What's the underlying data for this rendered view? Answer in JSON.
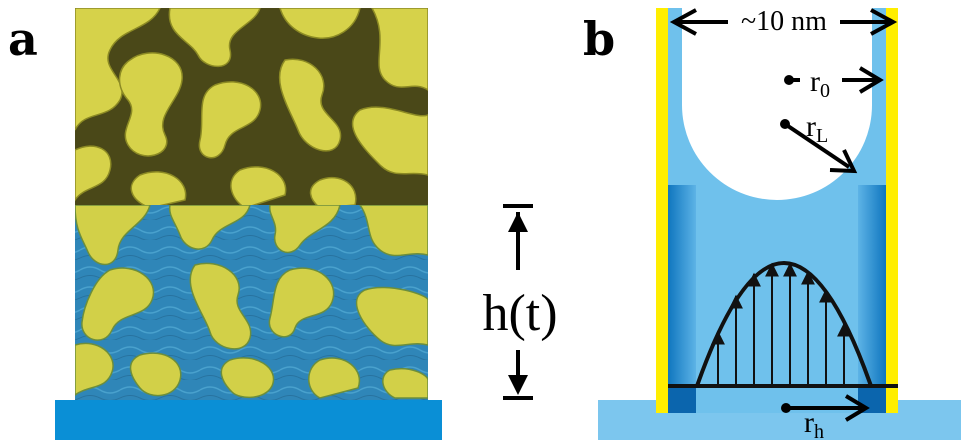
{
  "panel_a": {
    "letter": "a",
    "height_label": "h(t)",
    "colors": {
      "substrate": "#0a8fd6",
      "foam_yellow": "#dcd84a",
      "foam_dark": "#3b3a12",
      "liquid_blue": "#2f86b8"
    }
  },
  "panel_b": {
    "letter": "b",
    "width_label": "~10 nm",
    "r0": {
      "main": "r",
      "sub": "0"
    },
    "rL": {
      "main": "r",
      "sub": "L"
    },
    "rh": {
      "main": "r",
      "sub": "h"
    },
    "colors": {
      "wall_yellow": "#ffee00",
      "liquid_light": "#6fc1ec",
      "liquid_dark": "#1a82c8",
      "base": "#7cc6ee"
    }
  }
}
